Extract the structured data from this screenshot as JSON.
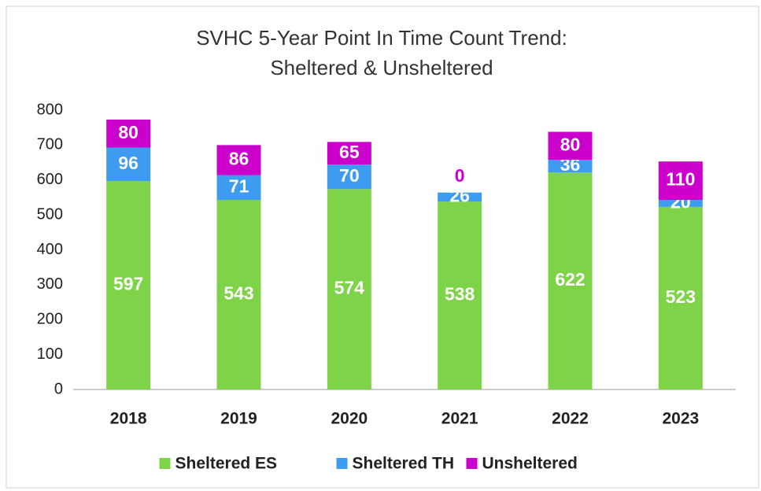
{
  "chart_data": {
    "type": "stacked-bar",
    "title": [
      "SVHC 5-Year Point In Time Count Trend:",
      "Sheltered & Unsheltered"
    ],
    "categories": [
      "2018",
      "2019",
      "2020",
      "2021",
      "2022",
      "2023"
    ],
    "series": [
      {
        "name": "Sheltered ES",
        "color": "#7ed348",
        "values": [
          597,
          543,
          574,
          538,
          622,
          523
        ]
      },
      {
        "name": "Sheltered TH",
        "color": "#3d9cf0",
        "values": [
          96,
          71,
          70,
          26,
          36,
          20
        ]
      },
      {
        "name": "Unsheltered",
        "color": "#cc00cc",
        "values": [
          80,
          86,
          65,
          0,
          80,
          110
        ]
      }
    ],
    "ylim": [
      0,
      800
    ],
    "yticks": [
      0,
      100,
      200,
      300,
      400,
      500,
      600,
      700,
      800
    ],
    "grid": false,
    "legend": "bottom"
  }
}
